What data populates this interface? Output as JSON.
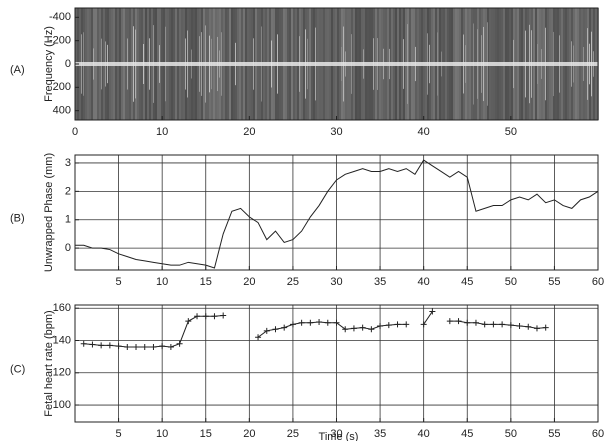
{
  "chart_data": [
    {
      "type": "spectrogram",
      "panel_label": "(A)",
      "ylabel": "Frequency (Hz)",
      "xlim": [
        0,
        60
      ],
      "xticks": [
        0,
        10,
        20,
        30,
        40,
        50
      ],
      "ylim": [
        -480,
        480
      ],
      "yticks": [
        -400,
        -200,
        0,
        200,
        400
      ],
      "yreverse": true,
      "grid": false
    },
    {
      "type": "line",
      "panel_label": "(B)",
      "ylabel": "Unwrapped Phase (mm)",
      "xlim": [
        0,
        60
      ],
      "xticks": [
        5,
        10,
        15,
        20,
        25,
        30,
        35,
        40,
        45,
        50,
        55,
        60
      ],
      "ylim": [
        -0.77,
        3.28
      ],
      "yticks": [
        0,
        1,
        2,
        3
      ],
      "grid": true,
      "color": "#222222",
      "x": [
        0,
        1,
        2,
        3,
        4,
        5,
        6,
        7,
        8,
        9,
        10,
        11,
        12,
        13,
        14,
        15,
        16,
        17,
        18,
        19,
        20,
        21,
        22,
        23,
        24,
        25,
        26,
        27,
        28,
        29,
        30,
        31,
        32,
        33,
        34,
        35,
        36,
        37,
        38,
        39,
        40,
        41,
        42,
        43,
        44,
        45,
        46,
        47,
        48,
        49,
        50,
        51,
        52,
        53,
        54,
        55,
        56,
        57,
        58,
        59,
        60
      ],
      "values": [
        0.1,
        0.1,
        0,
        0,
        -0.05,
        -0.2,
        -0.3,
        -0.4,
        -0.45,
        -0.5,
        -0.55,
        -0.6,
        -0.6,
        -0.5,
        -0.55,
        -0.6,
        -0.7,
        0.5,
        1.3,
        1.4,
        1.1,
        0.9,
        0.3,
        0.6,
        0.2,
        0.3,
        0.6,
        1.1,
        1.5,
        2.0,
        2.4,
        2.6,
        2.7,
        2.8,
        2.7,
        2.7,
        2.8,
        2.7,
        2.8,
        2.6,
        3.1,
        2.9,
        2.7,
        2.5,
        2.7,
        2.5,
        1.3,
        1.4,
        1.5,
        1.5,
        1.7,
        1.8,
        1.7,
        1.9,
        1.6,
        1.7,
        1.5,
        1.4,
        1.7,
        1.8,
        2.0
      ]
    },
    {
      "type": "line",
      "panel_label": "(C)",
      "ylabel": "Fetal heart rate (bpm)",
      "xlabel": "Time (s)",
      "xlim": [
        0,
        60
      ],
      "xticks": [
        5,
        10,
        15,
        20,
        25,
        30,
        35,
        40,
        45,
        50,
        55,
        60
      ],
      "ylim": [
        89.5,
        162
      ],
      "yticks": [
        100,
        120,
        140,
        160
      ],
      "grid": true,
      "color": "#222222",
      "marker": "+",
      "x": [
        1,
        2,
        3,
        4,
        5,
        6,
        7,
        8,
        9,
        10,
        11,
        12,
        13,
        14,
        15,
        16,
        17,
        18,
        19,
        20,
        21,
        22,
        23,
        24,
        25,
        26,
        27,
        28,
        29,
        30,
        31,
        32,
        33,
        34,
        35,
        36,
        37,
        38,
        39,
        40,
        41,
        42,
        43,
        44,
        45,
        46,
        47,
        48,
        49,
        50,
        51,
        52,
        53,
        54
      ],
      "values": [
        138,
        137.5,
        137,
        137,
        136.5,
        136,
        136,
        136,
        136,
        136.5,
        136,
        138,
        152,
        155,
        155,
        155,
        155.5,
        null,
        null,
        null,
        142,
        146,
        147,
        148,
        150,
        151,
        151,
        151.5,
        151,
        151,
        147,
        147.5,
        148,
        147,
        149,
        149.5,
        150,
        150,
        null,
        150,
        158,
        null,
        152,
        152,
        151,
        151,
        150,
        150,
        150,
        149.5,
        149,
        148.5,
        147.5,
        148
      ]
    }
  ]
}
